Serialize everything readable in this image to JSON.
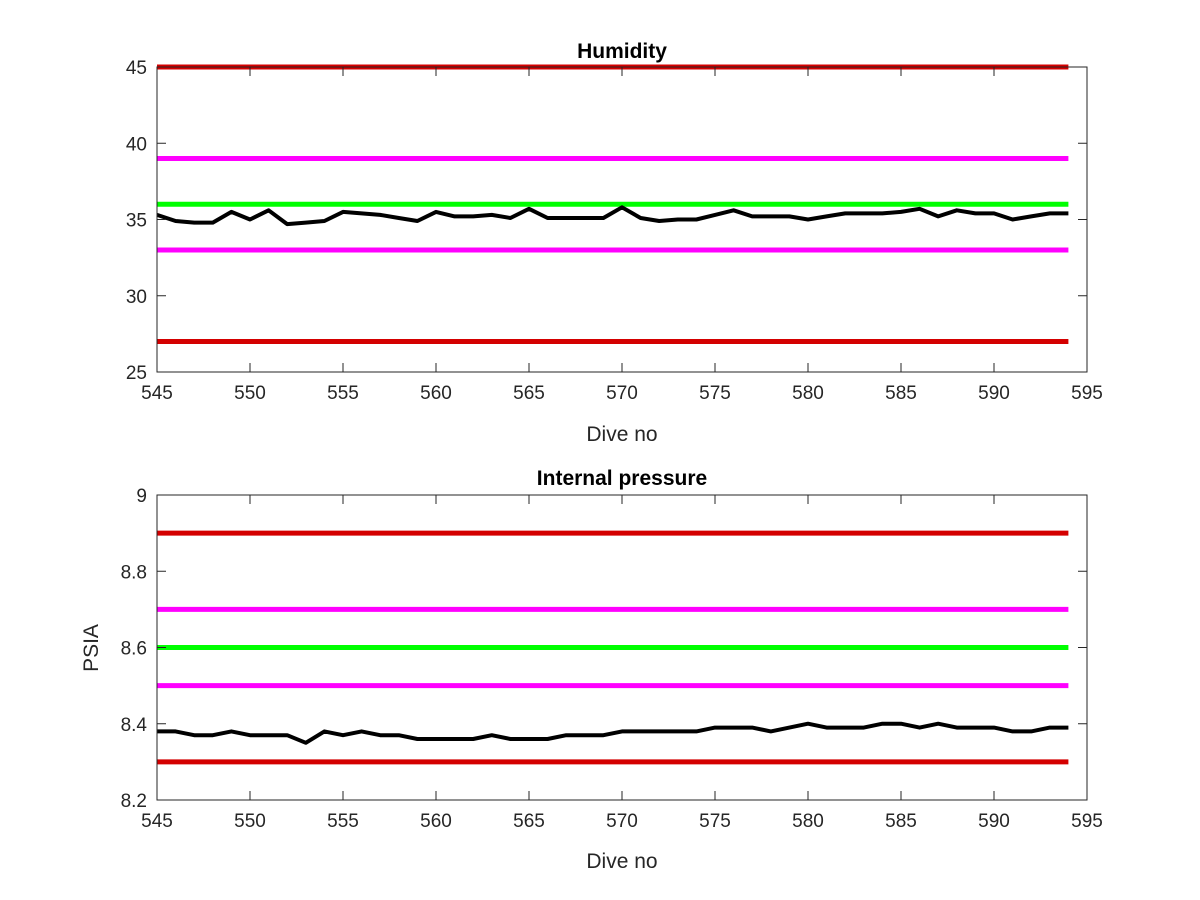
{
  "chart_data": [
    {
      "type": "line",
      "title": "Humidity",
      "xlabel": "Dive no",
      "ylabel": "",
      "xlim": [
        545,
        595
      ],
      "ylim": [
        25,
        45
      ],
      "xticks": [
        545,
        550,
        555,
        560,
        565,
        570,
        575,
        580,
        585,
        590,
        595
      ],
      "yticks": [
        25,
        30,
        35,
        40,
        45
      ],
      "grid": false,
      "series": [
        {
          "color": "#d40000",
          "kind": "hline",
          "x": [
            545,
            594
          ],
          "y": [
            45,
            45
          ]
        },
        {
          "color": "#ff00ff",
          "kind": "hline",
          "x": [
            545,
            594
          ],
          "y": [
            39,
            39
          ]
        },
        {
          "color": "#00ff00",
          "kind": "hline",
          "x": [
            545,
            594
          ],
          "y": [
            36,
            36
          ]
        },
        {
          "color": "#ff00ff",
          "kind": "hline",
          "x": [
            545,
            594
          ],
          "y": [
            33,
            33
          ]
        },
        {
          "color": "#d40000",
          "kind": "hline",
          "x": [
            545,
            594
          ],
          "y": [
            27,
            27
          ]
        },
        {
          "color": "#000000",
          "kind": "data",
          "x": [
            545,
            546,
            547,
            548,
            549,
            550,
            551,
            552,
            553,
            554,
            555,
            556,
            557,
            558,
            559,
            560,
            561,
            562,
            563,
            564,
            565,
            566,
            567,
            568,
            569,
            570,
            571,
            572,
            573,
            574,
            575,
            576,
            577,
            578,
            579,
            580,
            581,
            582,
            583,
            584,
            585,
            586,
            587,
            588,
            589,
            590,
            591,
            592,
            593,
            594
          ],
          "y": [
            35.3,
            34.9,
            34.8,
            34.8,
            35.5,
            35.0,
            35.6,
            34.7,
            34.8,
            34.9,
            35.5,
            35.4,
            35.3,
            35.1,
            34.9,
            35.5,
            35.2,
            35.2,
            35.3,
            35.1,
            35.7,
            35.1,
            35.1,
            35.1,
            35.1,
            35.8,
            35.1,
            34.9,
            35.0,
            35.0,
            35.3,
            35.6,
            35.2,
            35.2,
            35.2,
            35.0,
            35.2,
            35.4,
            35.4,
            35.4,
            35.5,
            35.7,
            35.2,
            35.6,
            35.4,
            35.4,
            35.0,
            35.2,
            35.4,
            35.4
          ]
        }
      ]
    },
    {
      "type": "line",
      "title": "Internal pressure",
      "xlabel": "Dive no",
      "ylabel": "PSIA",
      "xlim": [
        545,
        595
      ],
      "ylim": [
        8.2,
        9.0
      ],
      "xticks": [
        545,
        550,
        555,
        560,
        565,
        570,
        575,
        580,
        585,
        590,
        595
      ],
      "yticks": [
        "8.2",
        "8.4",
        "8.6",
        "8.8",
        "9"
      ],
      "grid": false,
      "series": [
        {
          "color": "#d40000",
          "kind": "hline",
          "x": [
            545,
            594
          ],
          "y": [
            8.9,
            8.9
          ]
        },
        {
          "color": "#ff00ff",
          "kind": "hline",
          "x": [
            545,
            594
          ],
          "y": [
            8.7,
            8.7
          ]
        },
        {
          "color": "#00ff00",
          "kind": "hline",
          "x": [
            545,
            594
          ],
          "y": [
            8.6,
            8.6
          ]
        },
        {
          "color": "#ff00ff",
          "kind": "hline",
          "x": [
            545,
            594
          ],
          "y": [
            8.5,
            8.5
          ]
        },
        {
          "color": "#d40000",
          "kind": "hline",
          "x": [
            545,
            594
          ],
          "y": [
            8.3,
            8.3
          ]
        },
        {
          "color": "#000000",
          "kind": "data",
          "x": [
            545,
            546,
            547,
            548,
            549,
            550,
            551,
            552,
            553,
            554,
            555,
            556,
            557,
            558,
            559,
            560,
            561,
            562,
            563,
            564,
            565,
            566,
            567,
            568,
            569,
            570,
            571,
            572,
            573,
            574,
            575,
            576,
            577,
            578,
            579,
            580,
            581,
            582,
            583,
            584,
            585,
            586,
            587,
            588,
            589,
            590,
            591,
            592,
            593,
            594
          ],
          "y": [
            8.38,
            8.38,
            8.37,
            8.37,
            8.38,
            8.37,
            8.37,
            8.37,
            8.35,
            8.38,
            8.37,
            8.38,
            8.37,
            8.37,
            8.36,
            8.36,
            8.36,
            8.36,
            8.37,
            8.36,
            8.36,
            8.36,
            8.37,
            8.37,
            8.37,
            8.38,
            8.38,
            8.38,
            8.38,
            8.38,
            8.39,
            8.39,
            8.39,
            8.38,
            8.39,
            8.4,
            8.39,
            8.39,
            8.39,
            8.4,
            8.4,
            8.39,
            8.4,
            8.39,
            8.39,
            8.39,
            8.38,
            8.38,
            8.39,
            8.39
          ]
        }
      ]
    }
  ]
}
